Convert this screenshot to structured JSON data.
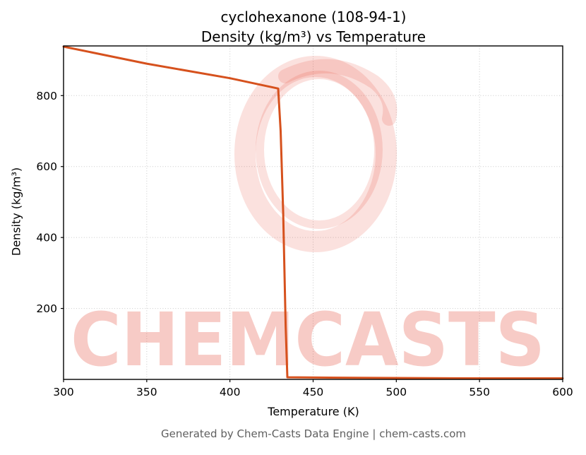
{
  "chart_data": {
    "type": "line",
    "title": "cyclohexanone (108-94-1)",
    "subtitle": "Density (kg/m³) vs Temperature",
    "xlabel": "Temperature (K)",
    "ylabel": "Density (kg/m³)",
    "xlim": [
      300,
      600
    ],
    "ylim": [
      0,
      940
    ],
    "x_ticks": [
      300,
      350,
      400,
      450,
      500,
      550,
      600
    ],
    "y_ticks": [
      200,
      400,
      600,
      800
    ],
    "grid": true,
    "legend": false,
    "line_color": "#d6511d",
    "line_width": 3,
    "series": [
      {
        "name": "Density",
        "points": [
          [
            300,
            938
          ],
          [
            350,
            890
          ],
          [
            400,
            849
          ],
          [
            429,
            820
          ],
          [
            430.5,
            700
          ],
          [
            432,
            470
          ],
          [
            433.5,
            150
          ],
          [
            434.5,
            6
          ],
          [
            460,
            5
          ],
          [
            500,
            4
          ],
          [
            550,
            3
          ],
          [
            600,
            3
          ]
        ]
      }
    ]
  },
  "watermark": {
    "text": "CHEMCASTS",
    "swirl_color": "rgba(228, 70, 52, 0.16)",
    "text_color": "rgba(228, 70, 52, 0.28)"
  },
  "footer": {
    "text": "Generated by Chem-Casts Data Engine | chem-casts.com"
  }
}
